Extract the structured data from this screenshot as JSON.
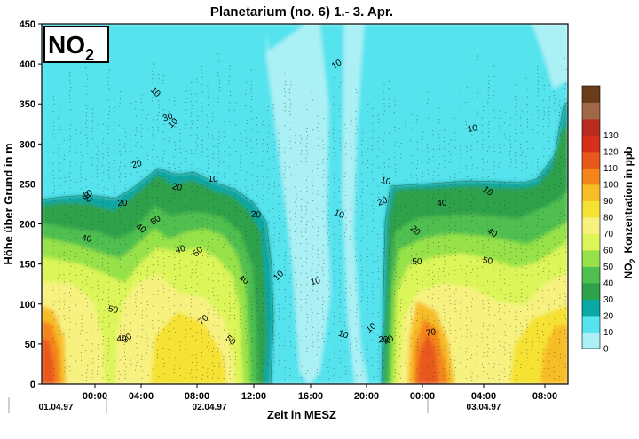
{
  "chart_data": {
    "type": "heatmap",
    "title": "Planetarium (no. 6) 1.- 3. Apr.",
    "badge": {
      "main": "NO",
      "sub": "2"
    },
    "xlabel": "Zeit in MESZ",
    "ylabel": "Höhe über Grund in m",
    "x_ticks": [
      "00:00",
      "04:00",
      "08:00",
      "12:00",
      "16:00",
      "20:00",
      "00:00",
      "04:00",
      "08:00"
    ],
    "y_ticks": [
      "0",
      "50",
      "100",
      "150",
      "200",
      "250",
      "300",
      "350",
      "400",
      "450"
    ],
    "ylim": [
      0,
      450
    ],
    "dates": [
      "01.04.97",
      "02.04.97",
      "03.04.97"
    ],
    "colorbar": {
      "label_main": "NO",
      "label_sub": "2",
      "label_rest": "Konzentration in ppb",
      "levels": [
        0,
        10,
        20,
        30,
        40,
        50,
        60,
        70,
        80,
        90,
        100,
        110,
        120,
        130
      ],
      "colors": [
        "#aaf0f5",
        "#55e3ee",
        "#0aa7a4",
        "#2ea14b",
        "#4fc04f",
        "#97e24a",
        "#dcf558",
        "#f7f280",
        "#f6e232",
        "#f7bd27",
        "#f4851d",
        "#e9581b",
        "#d6301a",
        "#b82d1e",
        "#a06846",
        "#6b3c1a"
      ]
    },
    "contour_labels": [
      "10",
      "20",
      "30",
      "40",
      "50",
      "70"
    ],
    "grid": false,
    "legend": "right"
  }
}
